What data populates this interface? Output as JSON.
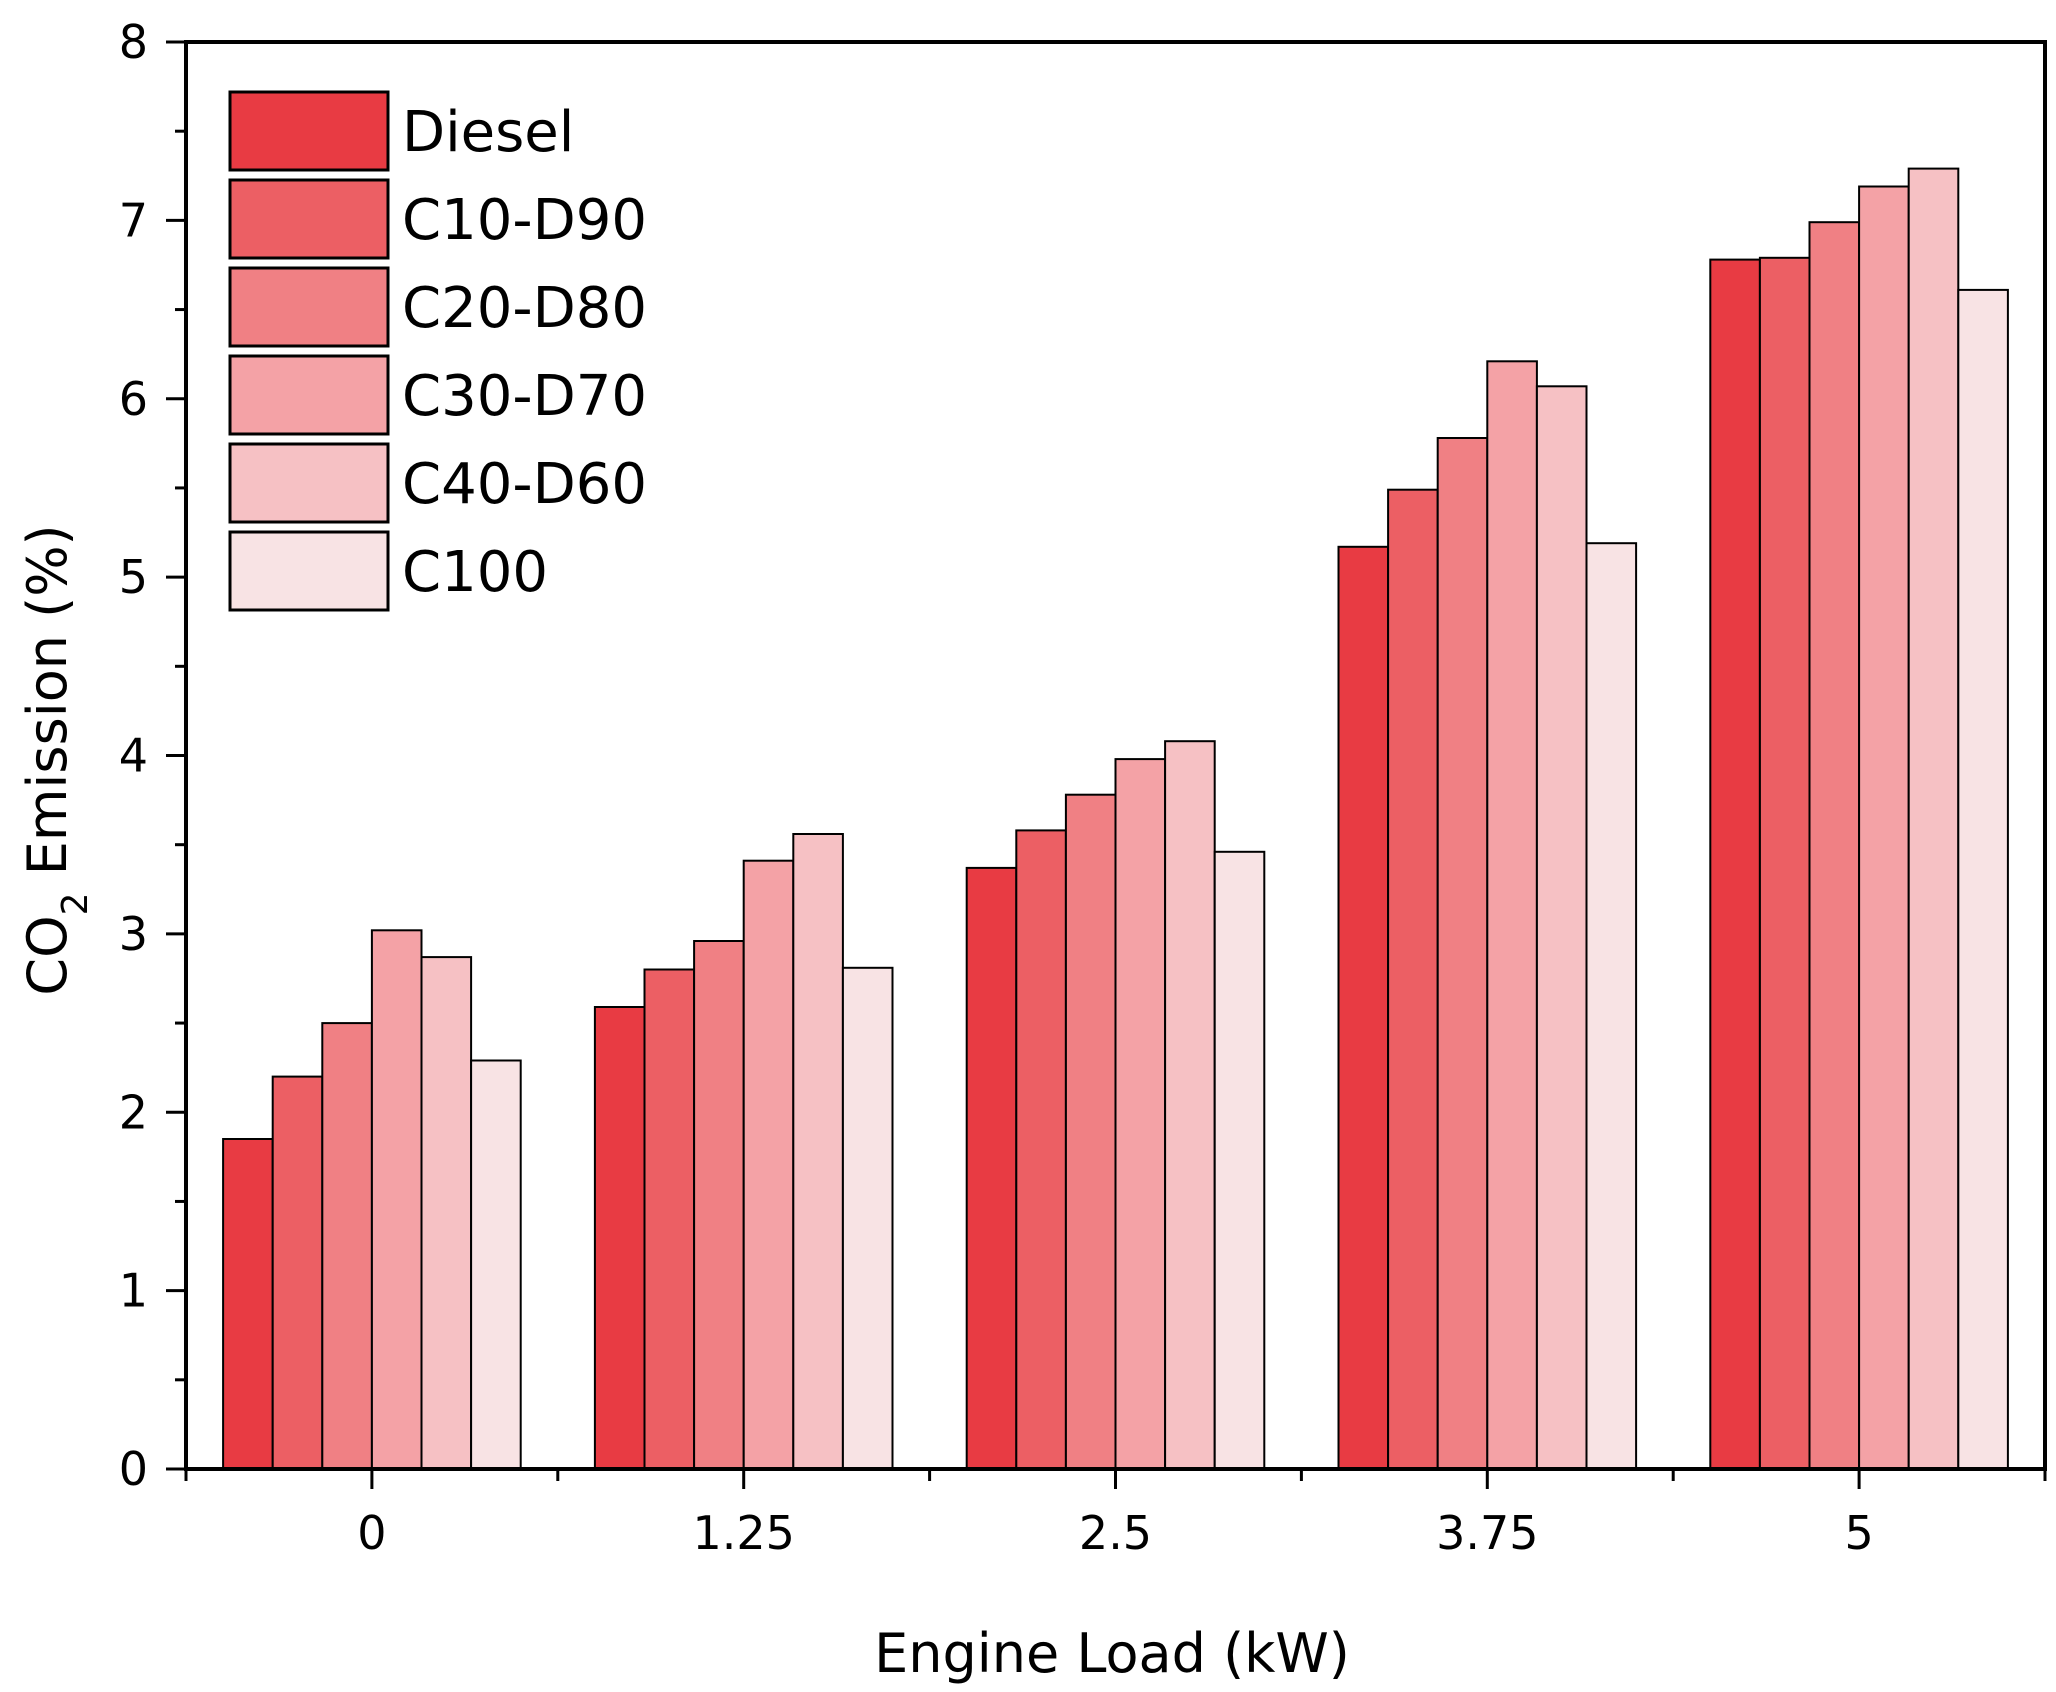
{
  "chart_data": {
    "type": "bar",
    "title": "",
    "xlabel": "Engine Load (kW)",
    "ylabel_main": "CO",
    "ylabel_sub": "2",
    "ylabel_rest": " Emission (%)",
    "ylim": [
      0,
      8
    ],
    "yticks": [
      "0",
      "1",
      "2",
      "3",
      "4",
      "5",
      "6",
      "7",
      "8"
    ],
    "categories": [
      "0",
      "1.25",
      "2.5",
      "3.75",
      "5"
    ],
    "legend_position": "top-left",
    "series": [
      {
        "name": "Diesel",
        "color": "#e83b43",
        "values": [
          1.85,
          2.59,
          3.37,
          5.17,
          6.78
        ]
      },
      {
        "name": "C10-D90",
        "color": "#ec5f64",
        "values": [
          2.2,
          2.8,
          3.58,
          5.49,
          6.79
        ]
      },
      {
        "name": "C20-D80",
        "color": "#f08084",
        "values": [
          2.5,
          2.96,
          3.78,
          5.78,
          6.99
        ]
      },
      {
        "name": "C30-D70",
        "color": "#f4a2a6",
        "values": [
          3.02,
          3.41,
          3.98,
          6.21,
          7.19
        ]
      },
      {
        "name": "C40-D60",
        "color": "#f6c1c4",
        "values": [
          2.87,
          3.56,
          4.08,
          6.07,
          7.29
        ]
      },
      {
        "name": "C100",
        "color": "#f8e3e4",
        "values": [
          2.29,
          2.81,
          3.46,
          5.19,
          6.61
        ]
      }
    ]
  }
}
